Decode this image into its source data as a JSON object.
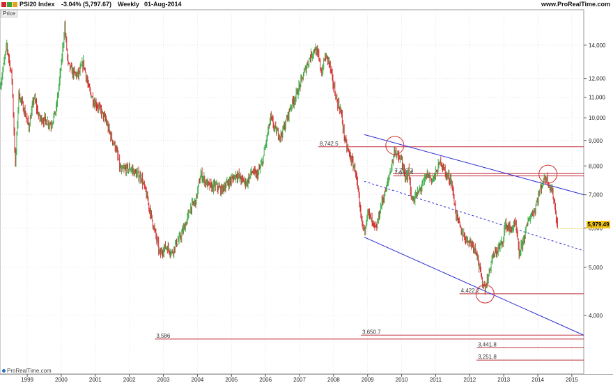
{
  "header": {
    "symbol": "PSI20 Index",
    "change": "-3.04% (5,797.67)",
    "period": "Weekly",
    "date": "01-Aug-2014",
    "site": "www.ProRealTime.com",
    "icon_colors": [
      "#d7262b",
      "#3aa63a",
      "#e6a21a"
    ]
  },
  "price_tab": "Price",
  "footer": {
    "credit": "ProRealTime.com"
  },
  "last_price": {
    "label": "5,979.49",
    "color": "#f0c419"
  },
  "chart_data": {
    "type": "line",
    "scale": "log",
    "ylim": [
      3050,
      16500
    ],
    "xlim": [
      1998.2,
      2015.35
    ],
    "y_ticks": [
      4000,
      5000,
      6000,
      7000,
      8000,
      9000,
      10000,
      11000,
      12000,
      14000
    ],
    "y_tick_labels": [
      "4,000",
      "5,000",
      "6,000",
      "7,000",
      "8,000",
      "9,000",
      "10,000",
      "11,000",
      "12,000",
      "14,000"
    ],
    "x_ticks": [
      1999,
      2000,
      2001,
      2002,
      2003,
      2004,
      2005,
      2006,
      2007,
      2008,
      2009,
      2010,
      2011,
      2012,
      2013,
      2014,
      2015
    ],
    "x_tick_labels": [
      "1999",
      "2000",
      "2001",
      "2002",
      "2003",
      "2004",
      "2005",
      "2006",
      "2007",
      "2008",
      "2009",
      "2010",
      "2011",
      "2012",
      "2013",
      "2014",
      "2015"
    ],
    "series": [
      {
        "values": [
          [
            1998.2,
            11500
          ],
          [
            1998.4,
            14000
          ],
          [
            1998.55,
            12000
          ],
          [
            1998.65,
            8000
          ],
          [
            1998.75,
            11200
          ],
          [
            1998.9,
            10400
          ],
          [
            1999.05,
            9600
          ],
          [
            1999.2,
            11000
          ],
          [
            1999.35,
            10000
          ],
          [
            1999.5,
            9900
          ],
          [
            1999.7,
            9700
          ],
          [
            1999.85,
            10400
          ],
          [
            2000.0,
            12800
          ],
          [
            2000.1,
            15300
          ],
          [
            2000.2,
            12800
          ],
          [
            2000.35,
            12300
          ],
          [
            2000.5,
            12200
          ],
          [
            2000.65,
            12900
          ],
          [
            2000.8,
            11500
          ],
          [
            2000.95,
            10800
          ],
          [
            2001.1,
            10500
          ],
          [
            2001.3,
            9900
          ],
          [
            2001.45,
            9200
          ],
          [
            2001.6,
            8700
          ],
          [
            2001.75,
            7800
          ],
          [
            2001.9,
            7900
          ],
          [
            2002.05,
            7900
          ],
          [
            2002.2,
            7700
          ],
          [
            2002.35,
            7600
          ],
          [
            2002.5,
            7000
          ],
          [
            2002.65,
            6300
          ],
          [
            2002.8,
            5700
          ],
          [
            2002.9,
            5300
          ],
          [
            2003.0,
            5450
          ],
          [
            2003.1,
            5500
          ],
          [
            2003.25,
            5350
          ],
          [
            2003.35,
            5550
          ],
          [
            2003.5,
            5750
          ],
          [
            2003.65,
            6100
          ],
          [
            2003.8,
            6600
          ],
          [
            2003.95,
            6800
          ],
          [
            2004.1,
            7700
          ],
          [
            2004.25,
            7400
          ],
          [
            2004.4,
            7250
          ],
          [
            2004.55,
            7300
          ],
          [
            2004.7,
            7150
          ],
          [
            2004.85,
            7350
          ],
          [
            2005.0,
            7500
          ],
          [
            2005.15,
            7700
          ],
          [
            2005.3,
            7500
          ],
          [
            2005.45,
            7400
          ],
          [
            2005.6,
            7800
          ],
          [
            2005.75,
            7650
          ],
          [
            2005.9,
            8100
          ],
          [
            2006.0,
            8800
          ],
          [
            2006.15,
            10000
          ],
          [
            2006.3,
            9400
          ],
          [
            2006.45,
            9200
          ],
          [
            2006.6,
            9800
          ],
          [
            2006.75,
            10600
          ],
          [
            2006.9,
            11100
          ],
          [
            2007.0,
            11600
          ],
          [
            2007.15,
            12400
          ],
          [
            2007.3,
            13200
          ],
          [
            2007.45,
            13800
          ],
          [
            2007.55,
            13300
          ],
          [
            2007.65,
            12300
          ],
          [
            2007.75,
            13300
          ],
          [
            2007.85,
            13100
          ],
          [
            2008.0,
            11600
          ],
          [
            2008.1,
            10800
          ],
          [
            2008.2,
            10400
          ],
          [
            2008.35,
            8900
          ],
          [
            2008.5,
            8300
          ],
          [
            2008.65,
            7800
          ],
          [
            2008.8,
            6300
          ],
          [
            2008.9,
            5900
          ],
          [
            2009.0,
            6500
          ],
          [
            2009.15,
            6100
          ],
          [
            2009.25,
            5950
          ],
          [
            2009.4,
            6700
          ],
          [
            2009.55,
            7200
          ],
          [
            2009.7,
            8000
          ],
          [
            2009.8,
            8650
          ],
          [
            2009.9,
            8300
          ],
          [
            2010.0,
            8200
          ],
          [
            2010.1,
            7500
          ],
          [
            2010.2,
            7800
          ],
          [
            2010.3,
            6800
          ],
          [
            2010.45,
            7000
          ],
          [
            2010.6,
            7300
          ],
          [
            2010.75,
            7700
          ],
          [
            2010.9,
            7500
          ],
          [
            2011.0,
            7700
          ],
          [
            2011.15,
            8200
          ],
          [
            2011.3,
            7700
          ],
          [
            2011.45,
            7500
          ],
          [
            2011.6,
            6400
          ],
          [
            2011.75,
            5900
          ],
          [
            2011.9,
            5700
          ],
          [
            2012.05,
            5600
          ],
          [
            2012.2,
            5400
          ],
          [
            2012.35,
            4700
          ],
          [
            2012.45,
            4550
          ],
          [
            2012.55,
            4800
          ],
          [
            2012.65,
            5200
          ],
          [
            2012.8,
            5400
          ],
          [
            2012.95,
            5600
          ],
          [
            2013.05,
            6100
          ],
          [
            2013.2,
            5950
          ],
          [
            2013.35,
            6100
          ],
          [
            2013.45,
            5300
          ],
          [
            2013.6,
            5750
          ],
          [
            2013.75,
            6300
          ],
          [
            2013.9,
            6500
          ],
          [
            2014.0,
            6900
          ],
          [
            2014.15,
            7450
          ],
          [
            2014.25,
            7600
          ],
          [
            2014.35,
            7300
          ],
          [
            2014.45,
            7000
          ],
          [
            2014.52,
            6500
          ],
          [
            2014.58,
            5980
          ]
        ]
      }
    ],
    "horizontal_lines": [
      {
        "value": 8742.5,
        "x_start": 2007.55,
        "label": "8,742.5"
      },
      {
        "value": 7720,
        "x_start": 2009.75,
        "label": "7,720.3"
      },
      {
        "value": 7636.4,
        "x_start": 2009.75,
        "label": "7,636.4"
      },
      {
        "value": 4422.2,
        "x_start": 2011.7,
        "label": "4,422.2"
      },
      {
        "value": 3650.7,
        "x_start": 2008.8,
        "label": "3,650.7"
      },
      {
        "value": 3586,
        "x_start": 2002.75,
        "label": "3,586"
      },
      {
        "value": 3441.8,
        "x_start": 2012.2,
        "label": "3,441.8"
      },
      {
        "value": 3251.8,
        "x_start": 2012.2,
        "label": "3,251.8"
      }
    ],
    "trend_lines": [
      {
        "style": "solid",
        "points": [
          [
            2008.9,
            9250
          ],
          [
            2015.35,
            7000
          ]
        ]
      },
      {
        "style": "dashed",
        "points": [
          [
            2008.9,
            7450
          ],
          [
            2015.35,
            5400
          ]
        ]
      },
      {
        "style": "solid",
        "points": [
          [
            2008.9,
            5750
          ],
          [
            2015.35,
            3650
          ]
        ]
      }
    ],
    "circles": [
      [
        2009.8,
        8800
      ],
      [
        2012.45,
        4420
      ],
      [
        2014.3,
        7700
      ]
    ],
    "last_value": 5979.49,
    "colors": {
      "up": "#3fae49",
      "down": "#d23030",
      "hline": "#c0303a",
      "trend": "#2a2ad6",
      "circle": "#d23030",
      "grid": "#d8d8d8"
    }
  }
}
